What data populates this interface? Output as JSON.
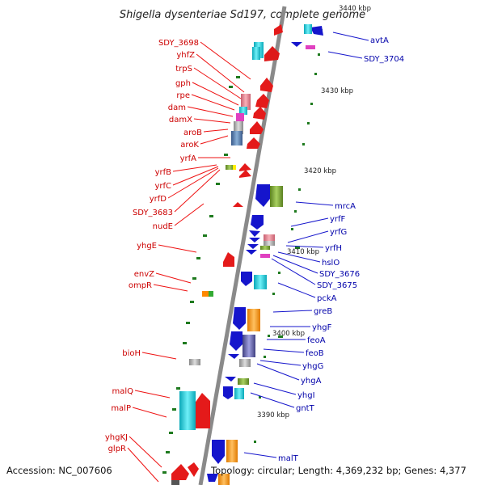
{
  "title": "Shigella dysenteriae Sd197, complete genome",
  "footer": {
    "accession": "Accession: NC_007606",
    "topology": "Topology: circular; Length: 4,369,232 bp; Genes: 4,377"
  },
  "colors": {
    "left_label": "#cc0000",
    "right_label": "#0000aa",
    "backbone": "#8a8a8a",
    "tick_marks": "#1e7a1e",
    "forward_gene": "#ee1111",
    "reverse_gene": "#1515cc"
  },
  "scale_ticks": [
    "3440 kbp",
    "3430 kbp",
    "3420 kbp",
    "3410 kbp",
    "3400 kbp",
    "3390 kbp"
  ],
  "left_genes": [
    "SDY_3698",
    "yhfZ",
    "trpS",
    "gph",
    "rpe",
    "dam",
    "damX",
    "aroB",
    "aroK",
    "yrfA",
    "yrfB",
    "yrfC",
    "yrfD",
    "SDY_3683",
    "nudE",
    "yhgE",
    "envZ",
    "ompR",
    "bioH",
    "malQ",
    "malP",
    "yhgKJ",
    "glpR"
  ],
  "right_genes": [
    "avtA",
    "SDY_3704",
    "mrcA",
    "yrfF",
    "yrfG",
    "yrfH",
    "hslO",
    "SDY_3676",
    "SDY_3675",
    "pckA",
    "greB",
    "yhgF",
    "feoA",
    "feoB",
    "yhgG",
    "yhgA",
    "yhgI",
    "gntT",
    "malT"
  ]
}
